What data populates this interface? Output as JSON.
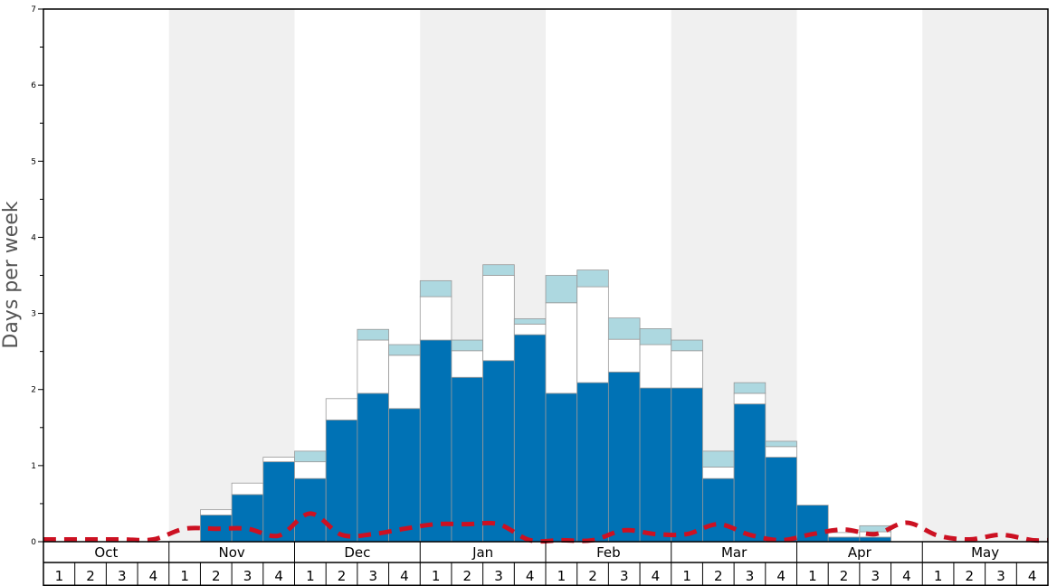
{
  "chart_data": {
    "type": "bar",
    "ylabel": "Days per week",
    "ylim": [
      0,
      7
    ],
    "y_ticks": [
      "0",
      "1",
      "2",
      "3",
      "4",
      "5",
      "6",
      "7"
    ],
    "months": [
      "Oct",
      "Nov",
      "Dec",
      "Jan",
      "Feb",
      "Mar",
      "Apr",
      "May"
    ],
    "week_labels": [
      "1",
      "2",
      "3",
      "4"
    ],
    "shaded_months": [
      "Nov",
      "Jan",
      "Mar",
      "May"
    ],
    "colors": {
      "dark": "#0072b5",
      "white": "#ffffff",
      "light": "#add8e0",
      "line": "#cc1122",
      "shade": "#f0f0f0"
    },
    "series": [
      {
        "key": "dark",
        "values": [
          0,
          0,
          0,
          0,
          0,
          0.35,
          0.62,
          1.05,
          0.83,
          1.6,
          1.95,
          1.75,
          2.65,
          2.16,
          2.38,
          2.72,
          1.95,
          2.09,
          2.23,
          2.02,
          2.02,
          0.83,
          1.81,
          1.11,
          0.48,
          0.06,
          0.06,
          0,
          0,
          0,
          0,
          0
        ]
      },
      {
        "key": "white",
        "values": [
          0,
          0,
          0,
          0,
          0,
          0.07,
          0.15,
          0.06,
          0.22,
          0.28,
          0.7,
          0.7,
          0.57,
          0.35,
          1.12,
          0.14,
          1.19,
          1.26,
          0.43,
          0.57,
          0.49,
          0.15,
          0.14,
          0.14,
          0,
          0.06,
          0.07,
          0,
          0,
          0,
          0,
          0
        ]
      },
      {
        "key": "light",
        "values": [
          0,
          0,
          0,
          0,
          0,
          0,
          0,
          0,
          0.14,
          0,
          0.14,
          0.14,
          0.21,
          0.14,
          0.14,
          0.07,
          0.36,
          0.22,
          0.28,
          0.21,
          0.14,
          0.21,
          0.14,
          0.07,
          0,
          0,
          0.08,
          0,
          0,
          0,
          0,
          0
        ]
      },
      {
        "key": "line",
        "values": [
          0.03,
          0.03,
          0.03,
          0.03,
          0.17,
          0.17,
          0.17,
          0.08,
          0.37,
          0.09,
          0.1,
          0.17,
          0.23,
          0.23,
          0.23,
          0.02,
          0.02,
          0.02,
          0.15,
          0.1,
          0.1,
          0.23,
          0.09,
          0.02,
          0.1,
          0.16,
          0.1,
          0.25,
          0.08,
          0.03,
          0.09,
          0.02
        ]
      }
    ]
  }
}
